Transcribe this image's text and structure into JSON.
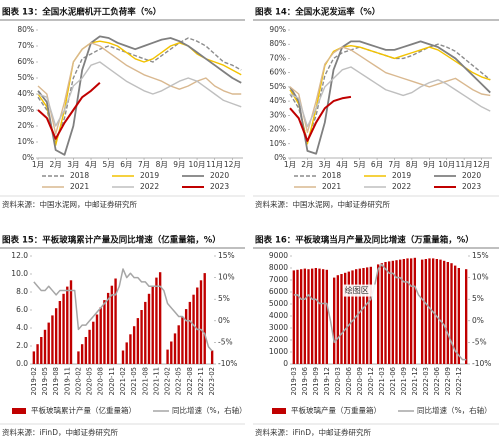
{
  "chart_data": [
    {
      "type": "line",
      "title": "图表 13：全国水泥磨机开工负荷率（%）",
      "source": "资料来源：中国水泥网，中邮证券研究所",
      "x": [
        1,
        1.5,
        2,
        2.5,
        3,
        3.5,
        4,
        4.5,
        5,
        5.5,
        6,
        6.5,
        7,
        7.5,
        8,
        8.5,
        9,
        9.5,
        10,
        10.5,
        11,
        11.5,
        12,
        12.5
      ],
      "xlim": [
        1,
        12.6
      ],
      "xticks": [
        {
          "value": 1,
          "label": "1月"
        },
        {
          "value": 2,
          "label": "2月"
        },
        {
          "value": 3,
          "label": "3月"
        },
        {
          "value": 4,
          "label": "4月"
        },
        {
          "value": 5,
          "label": "5月"
        },
        {
          "value": 6,
          "label": "6月"
        },
        {
          "value": 7,
          "label": "7月"
        },
        {
          "value": 8,
          "label": "8月"
        },
        {
          "value": 9,
          "label": "9月"
        },
        {
          "value": 10,
          "label": "10月"
        },
        {
          "value": 11,
          "label": "11月"
        },
        {
          "value": 12,
          "label": "12月"
        }
      ],
      "ylim": [
        0,
        80
      ],
      "yticks": [
        {
          "value": 0,
          "label": "0%"
        },
        {
          "value": 10,
          "label": "10%"
        },
        {
          "value": 20,
          "label": "20%"
        },
        {
          "value": 30,
          "label": "30%"
        },
        {
          "value": 40,
          "label": "40%"
        },
        {
          "value": 50,
          "label": "50%"
        },
        {
          "value": 60,
          "label": "60%"
        },
        {
          "value": 70,
          "label": "70%"
        },
        {
          "value": 80,
          "label": "80%"
        }
      ],
      "series": [
        {
          "name": "2018",
          "color": "#8c8c8c",
          "dash": true,
          "values": [
            38,
            30,
            10,
            25,
            50,
            62,
            65,
            68,
            70,
            68,
            66,
            64,
            62,
            60,
            64,
            68,
            72,
            75,
            73,
            70,
            65,
            60,
            58,
            55
          ]
        },
        {
          "name": "2019",
          "color": "#f2c200",
          "values": [
            40,
            32,
            8,
            30,
            60,
            68,
            72,
            73,
            72,
            70,
            66,
            62,
            60,
            62,
            66,
            70,
            72,
            70,
            65,
            62,
            60,
            58,
            55,
            52
          ]
        },
        {
          "name": "2020",
          "color": "#7f7f7f",
          "values": [
            42,
            35,
            5,
            2,
            20,
            55,
            72,
            76,
            75,
            72,
            70,
            68,
            70,
            72,
            74,
            75,
            73,
            70,
            66,
            62,
            58,
            54,
            50,
            47
          ]
        },
        {
          "name": "2021",
          "color": "#d9b88f",
          "values": [
            45,
            40,
            15,
            35,
            60,
            68,
            72,
            70,
            66,
            62,
            58,
            55,
            52,
            50,
            48,
            45,
            43,
            45,
            48,
            50,
            45,
            42,
            40,
            40
          ]
        },
        {
          "name": "2022",
          "color": "#bfbfbf",
          "values": [
            40,
            38,
            20,
            30,
            45,
            50,
            58,
            60,
            56,
            52,
            48,
            45,
            42,
            40,
            42,
            45,
            48,
            50,
            48,
            44,
            40,
            36,
            34,
            32
          ]
        },
        {
          "name": "2023",
          "color": "#c00000",
          "values": [
            30,
            25,
            12,
            22,
            30,
            38,
            42,
            47,
            null,
            null,
            null,
            null,
            null,
            null,
            null,
            null,
            null,
            null,
            null,
            null,
            null,
            null,
            null,
            null
          ]
        }
      ]
    },
    {
      "type": "line",
      "title": "图表 14：全国水泥发运率（%）",
      "source": "资料来源：中国水泥网，中邮证券研究所",
      "x": [
        1,
        1.5,
        2,
        2.5,
        3,
        3.5,
        4,
        4.5,
        5,
        5.5,
        6,
        6.5,
        7,
        7.5,
        8,
        8.5,
        9,
        9.5,
        10,
        10.5,
        11,
        11.5,
        12,
        12.5
      ],
      "xlim": [
        1,
        12.6
      ],
      "xticks": [
        {
          "value": 1,
          "label": "1月"
        },
        {
          "value": 2,
          "label": "2月"
        },
        {
          "value": 3,
          "label": "3月"
        },
        {
          "value": 4,
          "label": "4月"
        },
        {
          "value": 5,
          "label": "5月"
        },
        {
          "value": 6,
          "label": "6月"
        },
        {
          "value": 7,
          "label": "7月"
        },
        {
          "value": 8,
          "label": "8月"
        },
        {
          "value": 9,
          "label": "9月"
        },
        {
          "value": 10,
          "label": "10月"
        },
        {
          "value": 11,
          "label": "11月"
        },
        {
          "value": 12,
          "label": "12月"
        }
      ],
      "ylim": [
        0,
        90
      ],
      "yticks": [
        {
          "value": 0,
          "label": "0%"
        },
        {
          "value": 10,
          "label": "10%"
        },
        {
          "value": 20,
          "label": "20%"
        },
        {
          "value": 30,
          "label": "30%"
        },
        {
          "value": 40,
          "label": "40%"
        },
        {
          "value": 50,
          "label": "50%"
        },
        {
          "value": 60,
          "label": "60%"
        },
        {
          "value": 70,
          "label": "70%"
        },
        {
          "value": 80,
          "label": "80%"
        },
        {
          "value": 90,
          "label": "90%"
        }
      ],
      "series": [
        {
          "name": "2018",
          "color": "#8c8c8c",
          "dash": true,
          "values": [
            45,
            35,
            12,
            30,
            58,
            70,
            74,
            76,
            78,
            76,
            74,
            72,
            70,
            70,
            72,
            75,
            78,
            80,
            78,
            75,
            70,
            65,
            60,
            55
          ]
        },
        {
          "name": "2019",
          "color": "#f2c200",
          "values": [
            48,
            38,
            10,
            35,
            65,
            75,
            78,
            79,
            78,
            76,
            74,
            72,
            70,
            72,
            74,
            76,
            78,
            76,
            72,
            68,
            64,
            60,
            57,
            55
          ]
        },
        {
          "name": "2020",
          "color": "#7f7f7f",
          "values": [
            50,
            40,
            5,
            3,
            25,
            62,
            78,
            82,
            82,
            80,
            78,
            76,
            76,
            78,
            80,
            82,
            80,
            78,
            74,
            70,
            64,
            58,
            52,
            46
          ]
        },
        {
          "name": "2021",
          "color": "#d9b88f",
          "values": [
            50,
            45,
            18,
            40,
            66,
            74,
            78,
            76,
            72,
            68,
            64,
            60,
            58,
            56,
            54,
            52,
            50,
            52,
            54,
            56,
            52,
            48,
            45,
            44
          ]
        },
        {
          "name": "2022",
          "color": "#bfbfbf",
          "values": [
            45,
            42,
            22,
            35,
            50,
            56,
            62,
            64,
            60,
            56,
            52,
            48,
            46,
            44,
            46,
            50,
            53,
            55,
            52,
            48,
            44,
            40,
            36,
            33
          ]
        },
        {
          "name": "2023",
          "color": "#c00000",
          "values": [
            35,
            28,
            12,
            25,
            35,
            40,
            42,
            43,
            null,
            null,
            null,
            null,
            null,
            null,
            null,
            null,
            null,
            null,
            null,
            null,
            null,
            null,
            null,
            null
          ]
        }
      ]
    },
    {
      "type": "bar",
      "title": "图表 15：平板玻璃累计产量及同比增速（亿重量箱，%）",
      "source": "资料来源：iFinD，中邮证券研究所",
      "categories": [
        "2019-02",
        null,
        null,
        "2019-05",
        null,
        null,
        "2019-08",
        null,
        null,
        "2019-11",
        null,
        null,
        "2020-02",
        null,
        null,
        "2020-05",
        null,
        null,
        "2020-08",
        null,
        null,
        "2020-11",
        null,
        null,
        "2021-02",
        null,
        null,
        "2021-05",
        null,
        null,
        "2021-08",
        null,
        null,
        "2021-11",
        null,
        null,
        "2022-02",
        null,
        null,
        "2022-05",
        null,
        null,
        "2022-08",
        null,
        null,
        "2022-11",
        null,
        null,
        "2023-02"
      ],
      "ylim": [
        0,
        12
      ],
      "yticks": [
        {
          "value": 0,
          "label": "0.0"
        },
        {
          "value": 2,
          "label": "2.0"
        },
        {
          "value": 4,
          "label": "4.0"
        },
        {
          "value": 6,
          "label": "6.0"
        },
        {
          "value": 8,
          "label": "8.0"
        },
        {
          "value": 10,
          "label": "10.0"
        },
        {
          "value": 12,
          "label": "12.0"
        }
      ],
      "y2lim": [
        -10,
        15
      ],
      "y2ticks": [
        {
          "value": -10,
          "label": "-10%"
        },
        {
          "value": -5,
          "label": "-5%"
        },
        {
          "value": 0,
          "label": "0%"
        },
        {
          "value": 5,
          "label": "5%"
        },
        {
          "value": 10,
          "label": "10%"
        },
        {
          "value": 15,
          "label": "15%"
        }
      ],
      "series": [
        {
          "name": "平板玻璃累计产量（亿重量箱）",
          "type": "bar",
          "color": "#c00000",
          "values": [
            1.4,
            2.2,
            3.0,
            3.8,
            4.6,
            5.4,
            6.2,
            7.0,
            7.8,
            8.6,
            9.3,
            null,
            1.4,
            2.2,
            3.0,
            3.8,
            4.7,
            5.5,
            6.3,
            7.1,
            7.9,
            8.7,
            9.5,
            null,
            1.5,
            2.4,
            3.3,
            4.2,
            5.1,
            6.0,
            6.9,
            7.8,
            8.7,
            9.6,
            10.2,
            null,
            1.6,
            2.5,
            3.4,
            4.3,
            5.2,
            6.1,
            6.9,
            7.7,
            8.5,
            9.3,
            10.1,
            null,
            1.5
          ]
        },
        {
          "name": "同比增速（%，右轴）",
          "type": "line",
          "axis": "y2",
          "color": "#a6a6a6",
          "values": [
            9,
            8,
            7,
            7,
            8,
            7,
            6,
            7,
            7,
            7,
            7,
            7,
            -2,
            -1,
            -1,
            0,
            1,
            2,
            3,
            4,
            5,
            6,
            6,
            8,
            12,
            10,
            11,
            10,
            10,
            9,
            9,
            8,
            8,
            8,
            8,
            7,
            4,
            3,
            2,
            1,
            1,
            0,
            0,
            -1,
            -2,
            -2,
            -3,
            -6,
            -7
          ]
        }
      ]
    },
    {
      "type": "bar",
      "title": "图表 16：平板玻璃当月产量及同比增速（万重量箱，%）",
      "source": "资料来源：iFinD，中邮证券研究所",
      "annotation": "绘图区",
      "categories": [
        "2019-03",
        null,
        null,
        "2019-06",
        null,
        null,
        "2019-09",
        null,
        null,
        "2019-12",
        null,
        null,
        "2020-03",
        null,
        null,
        "2020-06",
        null,
        null,
        "2020-09",
        null,
        null,
        "2020-12",
        null,
        null,
        "2021-03",
        null,
        null,
        "2021-06",
        null,
        null,
        "2021-09",
        null,
        null,
        "2021-12",
        null,
        null,
        "2022-03",
        null,
        null,
        "2022-06",
        null,
        null,
        "2022-09",
        null,
        null,
        "2022-12",
        null,
        null
      ],
      "ylim": [
        0,
        9000
      ],
      "yticks": [
        0,
        1000,
        2000,
        3000,
        4000,
        5000,
        6000,
        7000,
        8000,
        9000
      ],
      "y2lim": [
        -10,
        15
      ],
      "y2ticks": [
        {
          "value": -10,
          "label": "-10%"
        },
        {
          "value": -5,
          "label": "-5%"
        },
        {
          "value": 0,
          "label": "0%"
        },
        {
          "value": 5,
          "label": "5%"
        },
        {
          "value": 10,
          "label": "10%"
        },
        {
          "value": 15,
          "label": "15%"
        }
      ],
      "series": [
        {
          "name": "平板玻璃产量（万重量箱）",
          "type": "bar",
          "color": "#c00000",
          "values": [
            7800,
            7850,
            7900,
            7950,
            7900,
            7950,
            8000,
            7950,
            7900,
            7850,
            null,
            7200,
            7400,
            7500,
            7600,
            7700,
            7800,
            7900,
            7950,
            8000,
            8050,
            8100,
            null,
            8300,
            8400,
            8500,
            8550,
            8600,
            8650,
            8700,
            8750,
            8800,
            8800,
            8850,
            null,
            8700,
            8750,
            8800,
            8800,
            8750,
            8700,
            8600,
            8500,
            8400,
            8200,
            8000,
            null,
            7900
          ]
        },
        {
          "name": "同比增速（%，右轴）",
          "type": "line",
          "axis": "y2",
          "color": "#a6a6a6",
          "values": [
            6,
            6,
            5,
            5,
            6,
            5,
            5,
            4,
            4,
            4,
            0,
            -5,
            -4,
            -3,
            -2,
            -1,
            0,
            1,
            2,
            3,
            4,
            5,
            8,
            12,
            13,
            12,
            11,
            11,
            10,
            10,
            9,
            9,
            8,
            8,
            6,
            5,
            4,
            3,
            2,
            1,
            0,
            -1,
            -3,
            -5,
            -7,
            -8,
            -9,
            -9
          ]
        }
      ]
    }
  ]
}
